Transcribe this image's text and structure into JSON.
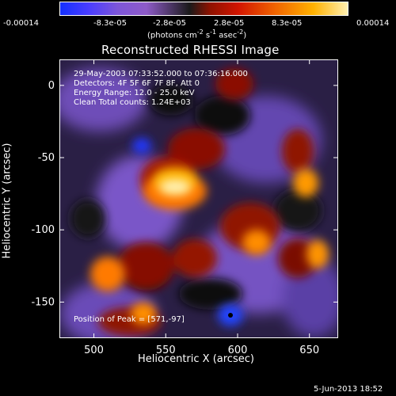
{
  "chart_data": {
    "type": "heatmap",
    "title": "Reconstructed RHESSI Image",
    "colorbar": {
      "ticks": [
        "-0.00014",
        "-8.3e-05",
        "-2.8e-05",
        "2.8e-05",
        "8.3e-05",
        "0.00014"
      ],
      "label_text": "(photons cm",
      "label_exp1": "-2",
      "label_text2": " s",
      "label_exp2": "-1",
      "label_text3": " asec",
      "label_exp3": "-2",
      "label_text4": ")",
      "colors": [
        "#1430ff",
        "#7d56d9",
        "#1a1a1a",
        "#d21500",
        "#ffb100",
        "#fff0b0"
      ]
    },
    "x_axis": {
      "label": "Heliocentric X (arcsec)",
      "range": [
        476,
        670
      ],
      "ticks": [
        "500",
        "550",
        "600",
        "650"
      ],
      "tick_values": [
        500,
        550,
        600,
        650
      ]
    },
    "y_axis": {
      "label": "Heliocentric Y (arcsec)",
      "range": [
        -175,
        18
      ],
      "ticks": [
        "0",
        "-50",
        "-100",
        "-150"
      ],
      "tick_values": [
        0,
        -50,
        -100,
        -150
      ]
    },
    "annotations": {
      "lines": [
        "29-May-2003 07:33:52.000 to 07:36:16.000",
        "Detectors: 4F 5F 6F 7F 8F, Att 0",
        "Energy Range: 12.0 - 25.0 keV",
        "Clean     Total counts: 1.24E+03"
      ],
      "peak": "Position of Peak = [571,-97]"
    },
    "date_stamp": "5-Jun-2013 18:52"
  }
}
